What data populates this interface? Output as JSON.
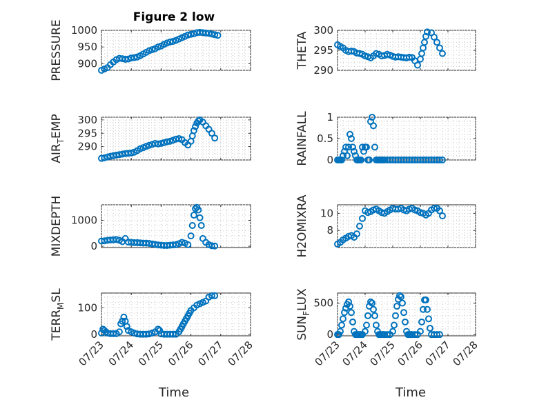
{
  "figure": {
    "title": "Figure 2 low",
    "xlabel": "Time",
    "x_tick_labels": [
      "07/23",
      "07/24",
      "07/25",
      "07/26",
      "07/27",
      "07/28"
    ]
  },
  "chart_data": [
    {
      "type": "scatter",
      "ylabel": "PRESSURE",
      "ylim": [
        880,
        1000
      ],
      "yticks": [
        900,
        950,
        1000
      ],
      "x_unit": "day of July",
      "xlim": [
        23,
        28
      ],
      "grid": true,
      "series": [
        {
          "x": [
            23.0,
            23.1,
            23.2,
            23.3,
            23.4,
            23.5,
            23.6,
            23.7,
            23.8,
            23.9,
            24.0,
            24.1,
            24.2,
            24.3,
            24.4,
            24.5,
            24.6,
            24.7,
            24.8,
            24.9,
            25.0,
            25.1,
            25.2,
            25.3,
            25.4,
            25.5,
            25.6,
            25.7,
            25.8,
            25.9,
            26.0,
            26.1,
            26.2,
            26.3,
            26.4,
            26.5,
            26.6,
            26.7,
            26.8,
            26.9
          ],
          "y": [
            880,
            884,
            888,
            897,
            905,
            912,
            916,
            915,
            913,
            914,
            917,
            918,
            920,
            924,
            929,
            934,
            939,
            942,
            945,
            950,
            953,
            958,
            962,
            965,
            967,
            970,
            974,
            978,
            982,
            986,
            988,
            990,
            993,
            994,
            993,
            992,
            991,
            989,
            987,
            985
          ]
        }
      ]
    },
    {
      "type": "scatter",
      "ylabel": "THETA",
      "ylim": [
        290,
        300
      ],
      "yticks": [
        290,
        295,
        300
      ],
      "x_unit": "day of July",
      "xlim": [
        23,
        28
      ],
      "grid": true,
      "series": [
        {
          "x": [
            23.0,
            23.1,
            23.2,
            23.3,
            23.4,
            23.5,
            23.6,
            23.7,
            23.8,
            23.9,
            24.0,
            24.1,
            24.2,
            24.3,
            24.4,
            24.5,
            24.6,
            24.7,
            24.8,
            24.9,
            25.0,
            25.1,
            25.2,
            25.3,
            25.4,
            25.5,
            25.6,
            25.7,
            25.8,
            25.9,
            26.0,
            26.05,
            26.1,
            26.15,
            26.2,
            26.25,
            26.3,
            26.4,
            26.5,
            26.6,
            26.7,
            26.8
          ],
          "y": [
            296.4,
            296.0,
            295.6,
            295.0,
            294.7,
            294.8,
            294.7,
            294.3,
            294.2,
            294.0,
            293.6,
            293.4,
            293.1,
            293.6,
            294.2,
            294.0,
            293.6,
            293.7,
            294.0,
            293.8,
            293.5,
            293.3,
            293.4,
            293.3,
            293.2,
            293.1,
            293.3,
            293.2,
            292.4,
            291.3,
            292.8,
            294.2,
            295.6,
            297.0,
            298.5,
            299.6,
            300.3,
            299.4,
            298.3,
            297.0,
            295.6,
            294.2
          ]
        }
      ]
    },
    {
      "type": "scatter",
      "ylabel": "AIR_TEMP",
      "ylabel_display": [
        "AIR",
        "T",
        "EMP"
      ],
      "ylim": [
        285,
        301
      ],
      "yticks": [
        290,
        295,
        300
      ],
      "x_unit": "day of July",
      "xlim": [
        23,
        28
      ],
      "grid": true,
      "series": [
        {
          "x": [
            23.0,
            23.1,
            23.2,
            23.3,
            23.4,
            23.5,
            23.6,
            23.7,
            23.8,
            23.9,
            24.0,
            24.1,
            24.2,
            24.3,
            24.4,
            24.5,
            24.6,
            24.7,
            24.8,
            24.9,
            25.0,
            25.1,
            25.2,
            25.3,
            25.4,
            25.5,
            25.6,
            25.7,
            25.8,
            25.9,
            26.0,
            26.05,
            26.1,
            26.15,
            26.2,
            26.25,
            26.3,
            26.4,
            26.5,
            26.6,
            26.7,
            26.8
          ],
          "y": [
            285.6,
            285.8,
            286.1,
            286.4,
            286.6,
            286.8,
            287.0,
            287.2,
            287.4,
            287.5,
            287.6,
            287.9,
            288.5,
            289.2,
            289.6,
            290.1,
            290.5,
            290.8,
            291.2,
            291.0,
            291.2,
            291.5,
            291.8,
            292.0,
            292.4,
            292.8,
            293.0,
            292.6,
            291.5,
            290.6,
            292.0,
            294.0,
            296.0,
            297.5,
            298.8,
            299.6,
            300.0,
            299.2,
            297.8,
            296.5,
            295.0,
            293.2
          ]
        }
      ]
    },
    {
      "type": "scatter",
      "ylabel": "RAINFALL",
      "ylim": [
        0,
        1
      ],
      "yticks": [
        0,
        0.5,
        1
      ],
      "x_unit": "day of July",
      "xlim": [
        23,
        28
      ],
      "grid": true,
      "series": [
        {
          "x": [
            23.0,
            23.05,
            23.1,
            23.15,
            23.2,
            23.25,
            23.3,
            23.35,
            23.4,
            23.45,
            23.5,
            23.55,
            23.6,
            23.65,
            23.7,
            23.75,
            23.8,
            23.85,
            23.9,
            23.95,
            24.0,
            24.05,
            24.1,
            24.15,
            24.2,
            24.25,
            24.3,
            24.35,
            24.4,
            24.45,
            24.5,
            24.55,
            24.6,
            24.65,
            24.7,
            24.8,
            24.9,
            25.0,
            25.1,
            25.2,
            25.3,
            25.4,
            25.5,
            25.6,
            25.7,
            25.8,
            25.9,
            26.0,
            26.1,
            26.2,
            26.3,
            26.4,
            26.5,
            26.6,
            26.7,
            26.8
          ],
          "y": [
            0,
            0,
            0,
            0,
            0.1,
            0.2,
            0.3,
            0.1,
            0.3,
            0.6,
            0.5,
            0.3,
            0.2,
            0.1,
            0,
            0,
            0,
            0,
            0.3,
            0.2,
            0.3,
            0.3,
            0,
            0,
            0.9,
            1.0,
            0.8,
            0.3,
            0,
            0,
            0,
            0,
            0,
            0,
            0,
            0,
            0,
            0,
            0,
            0,
            0,
            0,
            0,
            0,
            0,
            0,
            0,
            0,
            0,
            0,
            0,
            0,
            0,
            0,
            0,
            0
          ]
        }
      ]
    },
    {
      "type": "scatter",
      "ylabel": "MIXDEPTH",
      "ylim": [
        -50,
        1600
      ],
      "yticks": [
        0,
        1000
      ],
      "x_unit": "day of July",
      "xlim": [
        23,
        28
      ],
      "grid": true,
      "series": [
        {
          "x": [
            23.0,
            23.1,
            23.2,
            23.3,
            23.4,
            23.5,
            23.6,
            23.7,
            23.8,
            23.9,
            24.0,
            24.1,
            24.2,
            24.3,
            24.4,
            24.5,
            24.6,
            24.7,
            24.8,
            24.9,
            25.0,
            25.1,
            25.2,
            25.3,
            25.4,
            25.5,
            25.6,
            25.7,
            25.8,
            25.9,
            26.0,
            26.05,
            26.1,
            26.15,
            26.2,
            26.25,
            26.3,
            26.35,
            26.4,
            26.5,
            26.6,
            26.7,
            26.8
          ],
          "y": [
            200,
            210,
            230,
            240,
            250,
            260,
            230,
            180,
            300,
            160,
            150,
            140,
            140,
            130,
            120,
            120,
            110,
            90,
            70,
            50,
            40,
            30,
            30,
            40,
            50,
            60,
            100,
            150,
            120,
            60,
            400,
            800,
            1200,
            1450,
            1500,
            1400,
            1100,
            800,
            300,
            150,
            60,
            20,
            10
          ]
        }
      ]
    },
    {
      "type": "scatter",
      "ylabel": "H2OMIXRA",
      "ylim": [
        6,
        11
      ],
      "yticks": [
        8,
        10
      ],
      "x_unit": "day of July",
      "xlim": [
        23,
        28
      ],
      "grid": true,
      "series": [
        {
          "x": [
            23.0,
            23.1,
            23.2,
            23.3,
            23.4,
            23.5,
            23.6,
            23.7,
            23.8,
            23.9,
            24.0,
            24.1,
            24.2,
            24.3,
            24.4,
            24.5,
            24.6,
            24.7,
            24.8,
            24.9,
            25.0,
            25.1,
            25.2,
            25.3,
            25.4,
            25.5,
            25.6,
            25.7,
            25.8,
            25.9,
            26.0,
            26.1,
            26.2,
            26.3,
            26.4,
            26.5,
            26.6,
            26.7,
            26.8
          ],
          "y": [
            6.4,
            6.6,
            6.9,
            7.1,
            7.3,
            7.4,
            7.2,
            7.6,
            8.5,
            9.4,
            10.3,
            10.1,
            10.2,
            10.4,
            10.5,
            10.3,
            10.1,
            10.0,
            10.2,
            10.4,
            10.6,
            10.5,
            10.5,
            10.6,
            10.4,
            10.3,
            10.5,
            10.6,
            10.4,
            10.3,
            10.1,
            10.0,
            9.8,
            10.0,
            10.4,
            10.6,
            10.6,
            10.3,
            9.7
          ]
        }
      ]
    },
    {
      "type": "scatter",
      "ylabel": "TERR_MSL",
      "ylabel_display": [
        "TERR",
        "M",
        "SL"
      ],
      "ylim": [
        -5,
        155
      ],
      "yticks": [
        0,
        100
      ],
      "x_unit": "day of July",
      "xlim": [
        23,
        28
      ],
      "grid": true,
      "series": [
        {
          "x": [
            23.0,
            23.05,
            23.1,
            23.15,
            23.2,
            23.3,
            23.4,
            23.5,
            23.6,
            23.65,
            23.7,
            23.75,
            23.8,
            23.85,
            23.9,
            24.0,
            24.1,
            24.2,
            24.3,
            24.4,
            24.5,
            24.6,
            24.7,
            24.8,
            24.9,
            24.95,
            25.0,
            25.1,
            25.2,
            25.3,
            25.4,
            25.5,
            25.6,
            25.65,
            25.7,
            25.75,
            25.8,
            25.85,
            25.9,
            25.95,
            26.0,
            26.1,
            26.2,
            26.3,
            26.4,
            26.5,
            26.6,
            26.7,
            26.8
          ],
          "y": [
            5,
            20,
            15,
            10,
            5,
            3,
            3,
            3,
            10,
            40,
            50,
            65,
            50,
            30,
            15,
            10,
            5,
            2,
            1,
            1,
            1,
            2,
            5,
            10,
            20,
            15,
            2,
            1,
            1,
            1,
            1,
            1,
            10,
            20,
            30,
            40,
            50,
            60,
            70,
            80,
            90,
            100,
            110,
            115,
            120,
            125,
            140,
            145,
            145
          ]
        }
      ]
    },
    {
      "type": "scatter",
      "ylabel": "SUN_FLUX",
      "ylabel_display": [
        "SUN",
        "F",
        "LUX"
      ],
      "ylim": [
        -20,
        660
      ],
      "yticks": [
        0,
        500
      ],
      "x_unit": "day of July",
      "xlim": [
        23,
        28
      ],
      "grid": true,
      "series": [
        {
          "x": [
            23.0,
            23.05,
            23.1,
            23.15,
            23.2,
            23.25,
            23.3,
            23.35,
            23.4,
            23.45,
            23.5,
            23.55,
            23.6,
            23.65,
            23.7,
            23.75,
            23.8,
            23.85,
            23.9,
            24.0,
            24.05,
            24.1,
            24.15,
            24.2,
            24.25,
            24.3,
            24.35,
            24.4,
            24.45,
            24.5,
            24.55,
            24.6,
            24.65,
            24.7,
            24.8,
            24.9,
            25.0,
            25.05,
            25.1,
            25.15,
            25.2,
            25.25,
            25.3,
            25.35,
            25.4,
            25.45,
            25.5,
            25.55,
            25.6,
            25.65,
            25.7,
            25.8,
            25.9,
            26.0,
            26.05,
            26.1,
            26.15,
            26.2,
            26.25,
            26.3,
            26.35,
            26.4,
            26.5,
            26.6,
            26.7
          ],
          "y": [
            0,
            0,
            50,
            150,
            250,
            350,
            420,
            480,
            520,
            450,
            350,
            200,
            50,
            0,
            0,
            0,
            0,
            0,
            0,
            50,
            150,
            300,
            450,
            520,
            500,
            400,
            300,
            150,
            50,
            0,
            0,
            0,
            0,
            0,
            0,
            0,
            50,
            150,
            300,
            450,
            560,
            620,
            600,
            500,
            350,
            200,
            50,
            0,
            0,
            0,
            0,
            0,
            0,
            50,
            200,
            400,
            550,
            550,
            400,
            250,
            100,
            0,
            0,
            0,
            0
          ]
        }
      ]
    }
  ]
}
